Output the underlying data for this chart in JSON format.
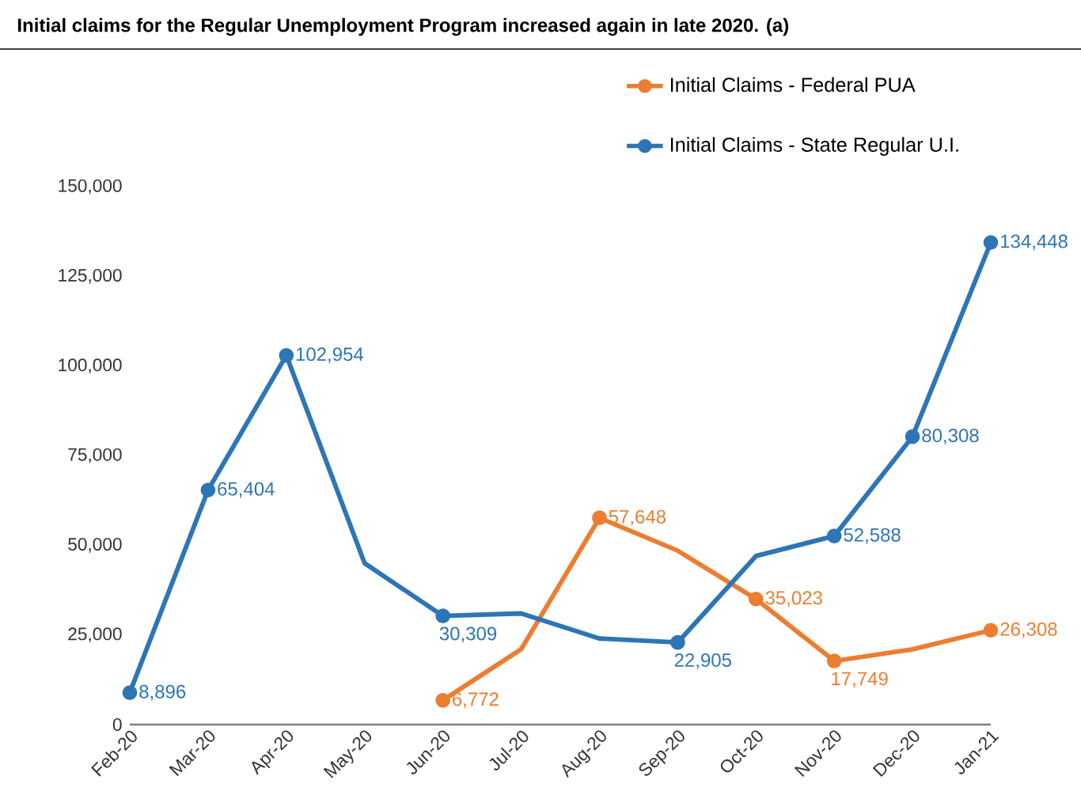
{
  "chart_data": {
    "type": "line",
    "title": "Initial claims for the Regular Unemployment Program increased again in late 2020. (a)",
    "categories": [
      "Feb-20",
      "Mar-20",
      "Apr-20",
      "May-20",
      "Jun-20",
      "Jul-20",
      "Aug-20",
      "Sep-20",
      "Oct-20",
      "Nov-20",
      "Dec-20",
      "Jan-21"
    ],
    "series": [
      {
        "name": "Initial Claims - Federal PUA",
        "color": "#ed7d31",
        "values": [
          null,
          null,
          null,
          null,
          6772,
          21000,
          57648,
          48500,
          35023,
          17749,
          21000,
          26308
        ],
        "value_labels": [
          null,
          null,
          null,
          null,
          "6,772",
          null,
          "57,648",
          null,
          "35,023",
          "17,749",
          null,
          "26,308"
        ]
      },
      {
        "name": "Initial Claims - State Regular U.I.",
        "color": "#2e75b6",
        "values": [
          8896,
          65404,
          102954,
          45000,
          30309,
          31000,
          24000,
          22905,
          47000,
          52588,
          80308,
          134448
        ],
        "value_labels": [
          "8,896",
          "65,404",
          "102,954",
          null,
          "30,309",
          null,
          null,
          "22,905",
          null,
          "52,588",
          "80,308",
          "134,448"
        ]
      }
    ],
    "ylim": [
      0,
      150000
    ],
    "yticks": [
      {
        "value": 0,
        "label": "0"
      },
      {
        "value": 25000,
        "label": "25,000"
      },
      {
        "value": 50000,
        "label": "50,000"
      },
      {
        "value": 75000,
        "label": "75,000"
      },
      {
        "value": 100000,
        "label": "100,000"
      },
      {
        "value": 125000,
        "label": "125,000"
      },
      {
        "value": 150000,
        "label": "150,000"
      }
    ],
    "grid": false,
    "legend": "top right",
    "marker": "circle",
    "line_style": "solid"
  }
}
